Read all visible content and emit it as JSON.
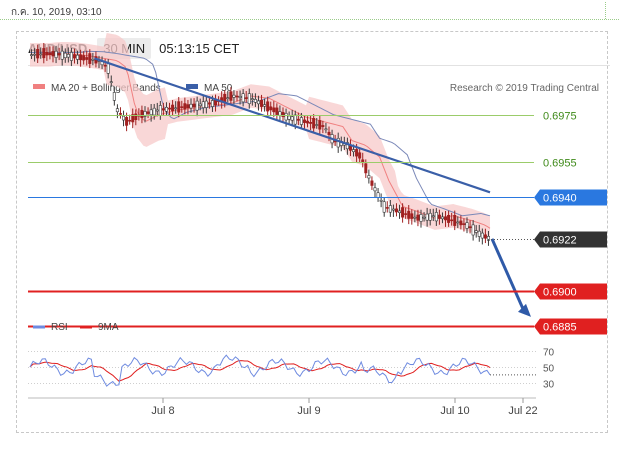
{
  "date_bar": {
    "text": "ก.ค. 10, 2019, 03:10"
  },
  "header": {
    "pair": "AUD/USD",
    "timeframe": "30 MIN",
    "time": "05:13:15 CET"
  },
  "legend": {
    "ma20": "MA 20 + Bollinger Bands",
    "ma50": "MA 50",
    "ma20_color": "#f08080",
    "ma50_color": "#3a5fa8",
    "credit": "Research © 2019 Trading Central"
  },
  "chart_data": [
    {
      "type": "line",
      "title": "AUD/USD",
      "timeframe": "30 MIN",
      "x_ticks": [
        "Jul 8",
        "Jul 9",
        "Jul 10",
        "Jul 22"
      ],
      "y_range": [
        0.688,
        0.7
      ],
      "levels": [
        {
          "label": "0.6975",
          "value": 0.6975,
          "kind": "resistance-green",
          "color": "#9bcc6a"
        },
        {
          "label": "0.6955",
          "value": 0.6955,
          "kind": "resistance-green",
          "color": "#9bcc6a"
        },
        {
          "label": "0.6940",
          "value": 0.694,
          "kind": "pivot-blue",
          "color": "#2a78e0"
        },
        {
          "label": "0.6922",
          "value": 0.6922,
          "kind": "last-price",
          "color": "#333333"
        },
        {
          "label": "0.6900",
          "value": 0.69,
          "kind": "support-red",
          "color": "#e02020"
        },
        {
          "label": "0.6885",
          "value": 0.6885,
          "kind": "support-red",
          "color": "#e02020"
        }
      ],
      "price_path": [
        [
          0,
          0.70005
        ],
        [
          3,
          0.7001
        ],
        [
          6,
          0.70008
        ],
        [
          9,
          0.7
        ],
        [
          12,
          0.6999
        ],
        [
          15,
          0.6998
        ],
        [
          17,
          0.6995
        ],
        [
          19,
          0.6977
        ],
        [
          21,
          0.6972
        ],
        [
          24,
          0.6975
        ],
        [
          28,
          0.6977
        ],
        [
          32,
          0.6978
        ],
        [
          36,
          0.6979
        ],
        [
          40,
          0.698
        ],
        [
          44,
          0.6983
        ],
        [
          48,
          0.6982
        ],
        [
          52,
          0.6978
        ],
        [
          56,
          0.6974
        ],
        [
          60,
          0.6972
        ],
        [
          64,
          0.697
        ],
        [
          66,
          0.6964
        ],
        [
          69,
          0.6962
        ],
        [
          72,
          0.6957
        ],
        [
          74,
          0.6947
        ],
        [
          77,
          0.6936
        ],
        [
          80,
          0.6934
        ],
        [
          84,
          0.6931
        ],
        [
          88,
          0.6932
        ],
        [
          92,
          0.693
        ],
        [
          95,
          0.6928
        ],
        [
          98,
          0.6924
        ],
        [
          100,
          0.69222
        ]
      ],
      "trendline": {
        "from": [
          14,
          0.6999
        ],
        "to": [
          100,
          0.6942
        ],
        "color": "#3a5fa8"
      }
    },
    {
      "type": "line",
      "title": "RSI",
      "series": [
        {
          "name": "RSI",
          "color": "#6f8be0"
        },
        {
          "name": "9MA",
          "color": "#e02020"
        }
      ],
      "y_ticks": [
        70,
        50,
        30
      ],
      "y_range": [
        10,
        80
      ]
    }
  ],
  "rsi_legend": {
    "rsi": "RSI",
    "ma9": "9MA"
  }
}
